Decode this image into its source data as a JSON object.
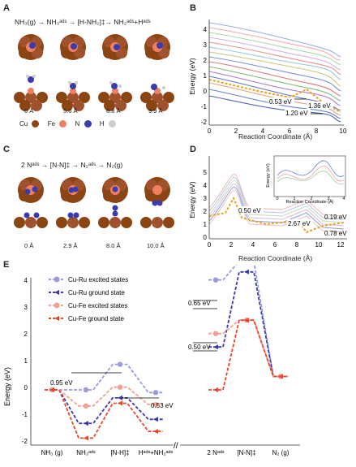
{
  "panels": {
    "A": {
      "label": "A",
      "equation": "NH₃(g) → NH₃ᵃᵈˢ → [H-NH₂]‡→ NH₂ᵃᵈˢ+Hᵃᵈˢ",
      "distances": [
        "0 Å",
        "5.0 Å",
        "6.8 Å",
        "9.9 Å"
      ],
      "legend": [
        {
          "label": "Cu",
          "color": "#8b4513"
        },
        {
          "label": "Fe",
          "color": "#f08060"
        },
        {
          "label": "N",
          "color": "#3b3bb0"
        },
        {
          "label": "H",
          "color": "#cccccc"
        }
      ]
    },
    "B": {
      "label": "B",
      "ylabel": "Energy (eV)",
      "xlabel": "Reaction Coordinate (Å)",
      "yticks": [
        "4",
        "3",
        "2",
        "1",
        "0",
        "-1",
        "-2"
      ],
      "xticks": [
        "0",
        "2",
        "4",
        "6",
        "8",
        "10"
      ],
      "annotations": [
        "0.53 eV",
        "1.20 eV",
        "1.36 eV"
      ]
    },
    "C": {
      "label": "C",
      "equation": "2 Nᵃᵈˢ → [N-N]‡ → N₂ᵃᵈˢ → N₂(g)",
      "distances": [
        "0 Å",
        "2.9 Å",
        "8.0 Å",
        "10.0 Å"
      ]
    },
    "D": {
      "label": "D",
      "ylabel": "Energy (eV)",
      "xlabel": "Reaction Coordinate (Å)",
      "yticks": [
        "5",
        "4",
        "3",
        "2",
        "1",
        "0"
      ],
      "xticks": [
        "0",
        "2",
        "4",
        "6",
        "8",
        "10",
        "12"
      ],
      "annotations": [
        "0.50 eV",
        "2.67 eV",
        "0.19 eV",
        "0.78 eV"
      ],
      "inset": {
        "ylabel": "Energy (eV)",
        "xlabel": "Reaction Coordinate (Å)",
        "xticks": [
          "0",
          "1",
          "2",
          "3",
          "4"
        ]
      }
    },
    "E": {
      "label": "E",
      "ylabel": "Energy (eV)",
      "legend": [
        {
          "label": "Cu-Ru excited states",
          "color": "#9a9ae0"
        },
        {
          "label": "Cu-Ru ground state",
          "color": "#3a3aa8"
        },
        {
          "label": "Cu-Fe excited states",
          "color": "#f2a090"
        },
        {
          "label": "Cu-Fe ground state",
          "color": "#e8452a"
        }
      ],
      "yticks": [
        "4",
        "3",
        "2",
        "1",
        "0",
        "-1",
        "-2"
      ],
      "xlabels": [
        "NH₃ (g)",
        "NH₃ᵃᵈˢ",
        "[N-H]‡",
        "Hᵃᵈˢ+NH₂ᵃᵈˢ",
        "2 Nᵃᵈˢ",
        "[N-N]‡",
        "N₂ (g)"
      ],
      "annotations": [
        "0.95 eV",
        "0.53 eV",
        "0.65 eV",
        "0.50 eV"
      ]
    }
  },
  "chart_data": [
    {
      "type": "line",
      "panel": "E-left",
      "categories": [
        "NH₃ (g)",
        "NH₃ᵃᵈˢ",
        "[N-H]‡",
        "Hᵃᵈˢ+NH₂ᵃᵈˢ"
      ],
      "ylim": [
        -2,
        5.3
      ],
      "series": [
        {
          "name": "Cu-Ru excited states",
          "values": [
            0,
            0.0,
            0.95,
            -0.1
          ]
        },
        {
          "name": "Cu-Ru ground state",
          "values": [
            0,
            -1.25,
            -0.3,
            -1.1
          ]
        },
        {
          "name": "Cu-Fe excited states",
          "values": [
            0,
            -0.6,
            0.1,
            -0.55
          ]
        },
        {
          "name": "Cu-Fe ground state",
          "values": [
            0,
            -1.8,
            -0.5,
            -1.55
          ]
        }
      ]
    },
    {
      "type": "line",
      "panel": "E-right",
      "categories": [
        "2 Nᵃᵈˢ",
        "[N-N]‡",
        "N₂ (g)"
      ],
      "ylim": [
        -2,
        5.3
      ],
      "series": [
        {
          "name": "Cu-Ru excited states",
          "values": [
            4.1,
            4.8,
            0.5
          ]
        },
        {
          "name": "Cu-Ru ground state",
          "values": [
            1.6,
            4.4,
            0.5
          ]
        },
        {
          "name": "Cu-Fe excited states",
          "values": [
            2.1,
            2.6,
            0.5
          ]
        },
        {
          "name": "Cu-Fe ground state",
          "values": [
            0.0,
            2.6,
            0.5
          ]
        }
      ]
    }
  ]
}
